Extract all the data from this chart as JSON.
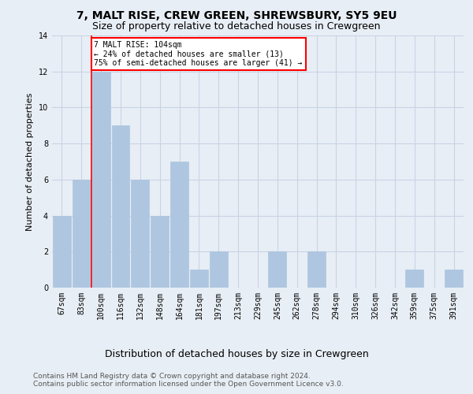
{
  "title": "7, MALT RISE, CREW GREEN, SHREWSBURY, SY5 9EU",
  "subtitle": "Size of property relative to detached houses in Crewgreen",
  "xlabel": "Distribution of detached houses by size in Crewgreen",
  "ylabel": "Number of detached properties",
  "categories": [
    "67sqm",
    "83sqm",
    "100sqm",
    "116sqm",
    "132sqm",
    "148sqm",
    "164sqm",
    "181sqm",
    "197sqm",
    "213sqm",
    "229sqm",
    "245sqm",
    "262sqm",
    "278sqm",
    "294sqm",
    "310sqm",
    "326sqm",
    "342sqm",
    "359sqm",
    "375sqm",
    "391sqm"
  ],
  "values": [
    4,
    6,
    12,
    9,
    6,
    4,
    7,
    1,
    2,
    0,
    0,
    2,
    0,
    2,
    0,
    0,
    0,
    0,
    1,
    0,
    1
  ],
  "bar_color": "#aec6e0",
  "bar_edgecolor": "#aec6e0",
  "grid_color": "#c8d4e4",
  "background_color": "#e8eef5",
  "vline_x_index": 2,
  "vline_color": "red",
  "annotation_text": "7 MALT RISE: 104sqm\n← 24% of detached houses are smaller (13)\n75% of semi-detached houses are larger (41) →",
  "annotation_box_color": "white",
  "annotation_box_edgecolor": "red",
  "ylim": [
    0,
    14
  ],
  "yticks": [
    0,
    2,
    4,
    6,
    8,
    10,
    12,
    14
  ],
  "footer_line1": "Contains HM Land Registry data © Crown copyright and database right 2024.",
  "footer_line2": "Contains public sector information licensed under the Open Government Licence v3.0.",
  "title_fontsize": 10,
  "subtitle_fontsize": 9,
  "xlabel_fontsize": 9,
  "ylabel_fontsize": 8,
  "tick_fontsize": 7,
  "annotation_fontsize": 7,
  "footer_fontsize": 6.5
}
